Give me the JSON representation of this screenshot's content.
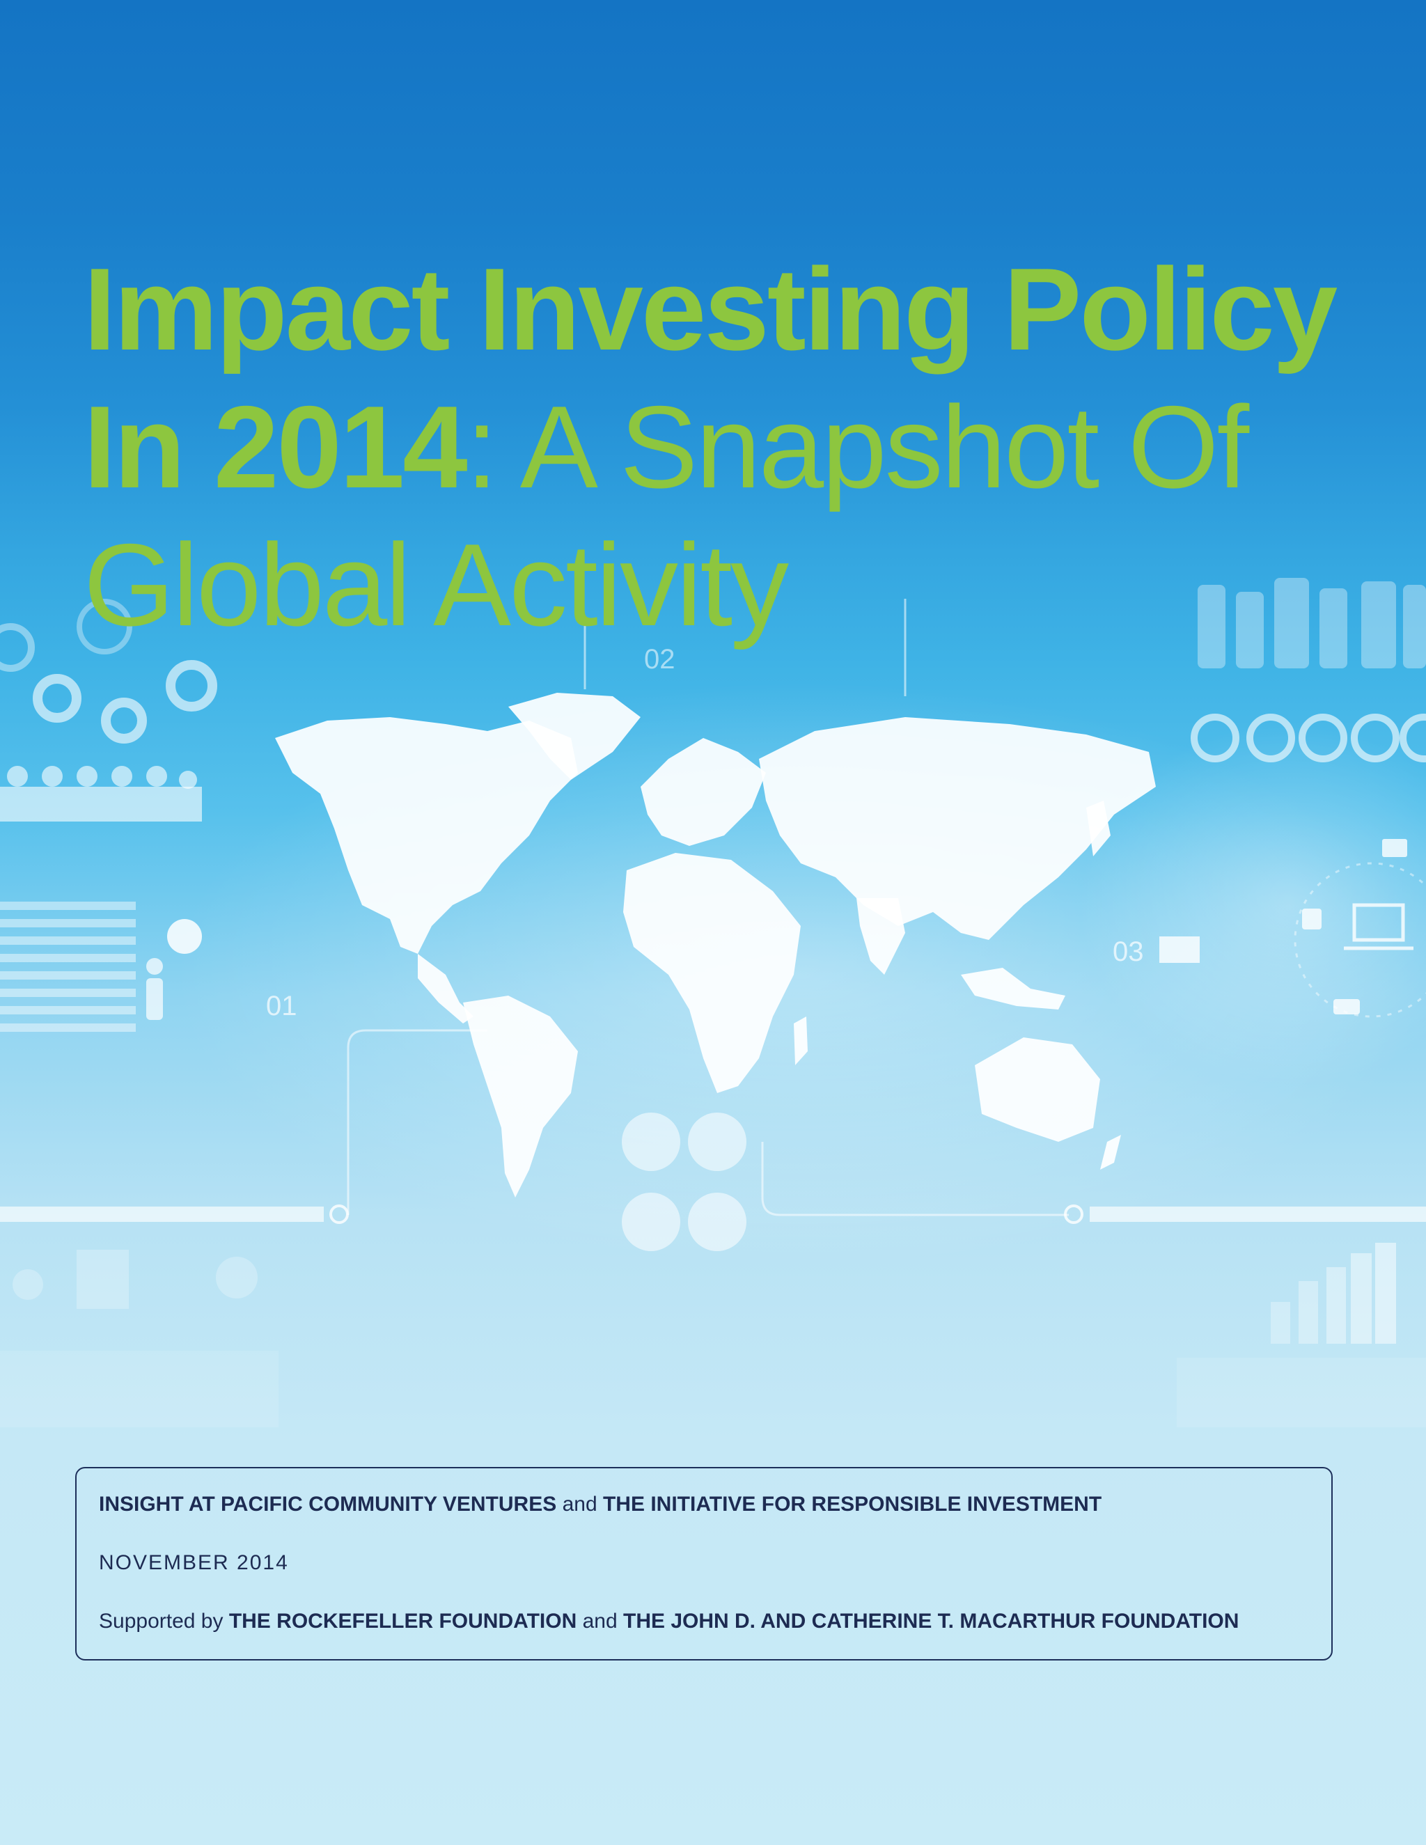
{
  "title": {
    "line1": "Impact Investing Policy",
    "line2_bold": "In 2014",
    "line2_light": ": A Snapshot Of",
    "line3": "Global Activity"
  },
  "info": {
    "org1": "INSIGHT AT PACIFIC COMMUNITY VENTURES",
    "and1": "and",
    "org2": "THE INITIATIVE FOR RESPONSIBLE INVESTMENT",
    "date": "NOVEMBER 2014",
    "supported_by": "Supported by",
    "sponsor1": "THE ROCKEFELLER FOUNDATION",
    "and2": "and",
    "sponsor2": "THE JOHN D. AND CATHERINE T. MACARTHUR FOUNDATION"
  },
  "graphic_labels": {
    "label_01": "01",
    "label_02": "02",
    "label_03": "03"
  },
  "colors": {
    "title_green": "#8dc63f",
    "navy_text": "#1d2b52",
    "sky_top": "#1474c4",
    "sky_bottom": "#c9ebf7"
  }
}
